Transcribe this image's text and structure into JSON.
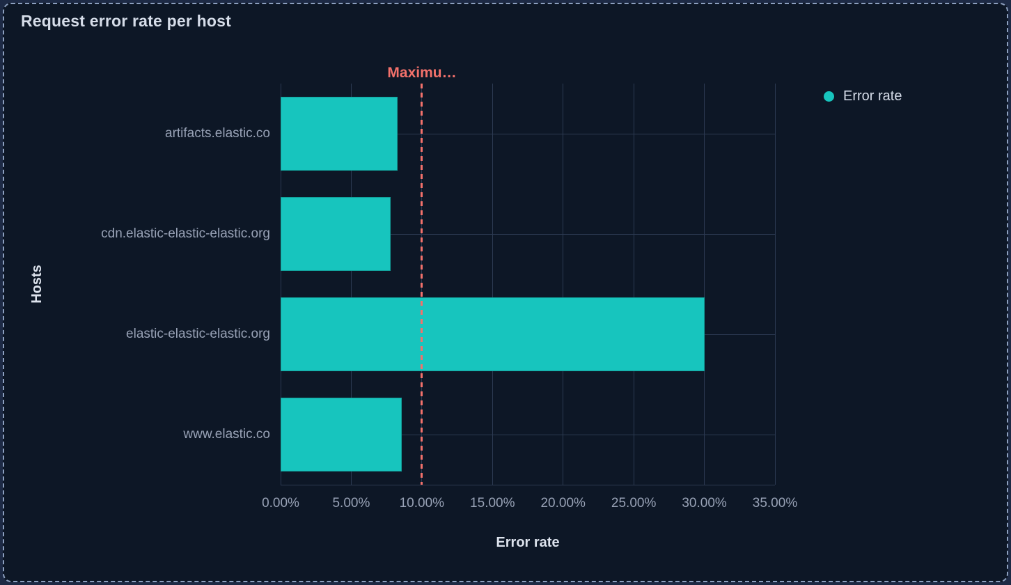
{
  "panel": {
    "title": "Request error rate per host"
  },
  "chart_data": {
    "type": "bar",
    "orientation": "horizontal",
    "title": "Request error rate per host",
    "categories": [
      "artifacts.elastic.co",
      "cdn.elastic-elastic-elastic.org",
      "elastic-elastic-elastic.org",
      "www.elastic.co"
    ],
    "series": [
      {
        "name": "Error rate",
        "values": [
          8.3,
          7.8,
          30.0,
          8.6
        ]
      }
    ],
    "xlabel": "Error rate",
    "ylabel": "Hosts",
    "xlim": [
      0,
      35
    ],
    "x_ticks": [
      {
        "value": 0,
        "label": "0.00%"
      },
      {
        "value": 5,
        "label": "5.00%"
      },
      {
        "value": 10,
        "label": "10.00%"
      },
      {
        "value": 15,
        "label": "15.00%"
      },
      {
        "value": 20,
        "label": "20.00%"
      },
      {
        "value": 25,
        "label": "25.00%"
      },
      {
        "value": 30,
        "label": "30.00%"
      },
      {
        "value": 35,
        "label": "35.00%"
      }
    ],
    "grid": true,
    "legend": {
      "position": "right",
      "items": [
        {
          "label": "Error rate",
          "color": "#17c5be"
        }
      ]
    },
    "threshold": {
      "value": 10,
      "label": "Maximu…",
      "color": "#f3716b",
      "style": "dashed"
    }
  },
  "colors": {
    "background": "#0d1726",
    "outer_background": "#1d2a45",
    "panel_border": "#8da0bf",
    "grid": "#2c3a52",
    "bar": "#17c5be",
    "threshold": "#f3716b",
    "text_primary": "#d6dde9",
    "text_secondary": "#98a2b6"
  }
}
